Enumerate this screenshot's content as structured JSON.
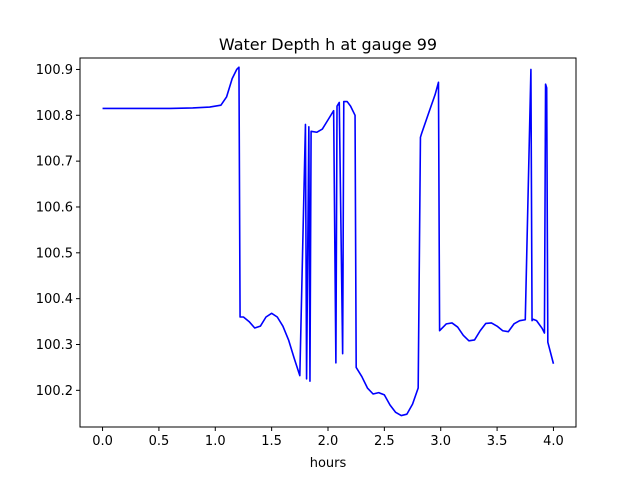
{
  "chart_data": {
    "type": "line",
    "title": "Water Depth h at gauge 99",
    "xlabel": "hours",
    "ylabel": "",
    "xlim": [
      -0.2,
      4.2
    ],
    "ylim": [
      100.12,
      100.925
    ],
    "xticks": [
      0.0,
      0.5,
      1.0,
      1.5,
      2.0,
      2.5,
      3.0,
      3.5,
      4.0
    ],
    "xtick_labels": [
      "0.0",
      "0.5",
      "1.0",
      "1.5",
      "2.0",
      "2.5",
      "3.0",
      "3.5",
      "4.0"
    ],
    "yticks": [
      100.2,
      100.3,
      100.4,
      100.5,
      100.6,
      100.7,
      100.8,
      100.9
    ],
    "ytick_labels": [
      "100.2",
      "100.3",
      "100.4",
      "100.5",
      "100.6",
      "100.7",
      "100.8",
      "100.9"
    ],
    "grid": false,
    "series": [
      {
        "color": "#0000ff",
        "x": [
          0.0,
          0.3,
          0.6,
          0.8,
          0.95,
          1.05,
          1.1,
          1.15,
          1.19,
          1.21,
          1.22,
          1.25,
          1.3,
          1.35,
          1.4,
          1.45,
          1.5,
          1.55,
          1.6,
          1.65,
          1.7,
          1.75,
          1.8,
          1.81,
          1.83,
          1.84,
          1.85,
          1.9,
          1.95,
          2.0,
          2.05,
          2.07,
          2.08,
          2.1,
          2.13,
          2.14,
          2.15,
          2.17,
          2.2,
          2.24,
          2.25,
          2.3,
          2.35,
          2.4,
          2.45,
          2.5,
          2.55,
          2.6,
          2.65,
          2.7,
          2.75,
          2.8,
          2.82,
          2.83,
          2.9,
          2.95,
          2.98,
          2.99,
          3.05,
          3.1,
          3.15,
          3.2,
          3.25,
          3.3,
          3.35,
          3.4,
          3.45,
          3.5,
          3.55,
          3.6,
          3.65,
          3.7,
          3.75,
          3.8,
          3.81,
          3.82,
          3.85,
          3.9,
          3.92,
          3.93,
          3.94,
          3.95,
          4.0
        ],
        "y": [
          100.815,
          100.815,
          100.815,
          100.816,
          100.818,
          100.822,
          100.84,
          100.88,
          100.9,
          100.905,
          100.36,
          100.36,
          100.35,
          100.336,
          100.34,
          100.36,
          100.368,
          100.36,
          100.34,
          100.31,
          100.27,
          100.232,
          100.78,
          100.225,
          100.775,
          100.22,
          100.765,
          100.763,
          100.77,
          100.79,
          100.81,
          100.26,
          100.82,
          100.828,
          100.28,
          100.83,
          100.83,
          100.83,
          100.82,
          100.8,
          100.25,
          100.23,
          100.205,
          100.192,
          100.195,
          100.19,
          100.168,
          100.152,
          100.145,
          100.148,
          100.17,
          100.205,
          100.752,
          100.76,
          100.81,
          100.845,
          100.872,
          100.33,
          100.345,
          100.347,
          100.338,
          100.32,
          100.308,
          100.31,
          100.33,
          100.346,
          100.347,
          100.34,
          100.33,
          100.328,
          100.345,
          100.352,
          100.354,
          100.9,
          100.352,
          100.355,
          100.352,
          100.335,
          100.325,
          100.868,
          100.86,
          100.305,
          100.258
        ]
      }
    ]
  }
}
